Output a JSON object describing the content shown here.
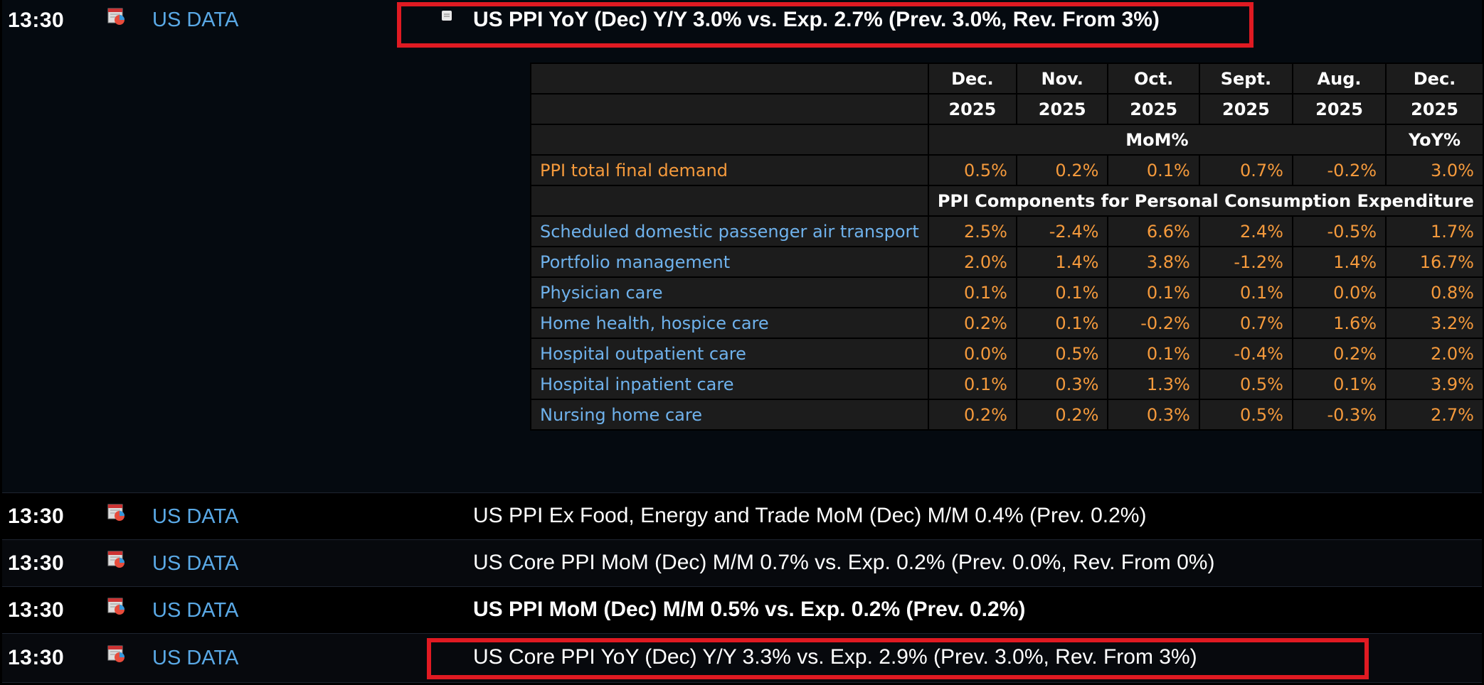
{
  "rows": [
    {
      "time": "13:30",
      "source": "US DATA",
      "headline": "US PPI YoY (Dec) Y/Y 3.0% vs. Exp. 2.7% (Prev. 3.0%, Rev. From 3%)"
    },
    {
      "time": "13:30",
      "source": "US DATA",
      "headline": "US PPI Ex Food, Energy and Trade MoM (Dec) M/M 0.4% (Prev. 0.2%)"
    },
    {
      "time": "13:30",
      "source": "US DATA",
      "headline": "US Core PPI MoM (Dec) M/M 0.7% vs. Exp. 0.2% (Prev. 0.0%, Rev. From 0%)"
    },
    {
      "time": "13:30",
      "source": "US DATA",
      "headline": "US PPI MoM (Dec) M/M 0.5% vs. Exp. 0.2% (Prev. 0.2%)"
    },
    {
      "time": "13:30",
      "source": "US DATA",
      "headline": "US Core PPI YoY (Dec) Y/Y 3.3% vs. Exp. 2.9% (Prev. 3.0%, Rev. From 3%)"
    }
  ],
  "table": {
    "months": [
      "Dec.",
      "Nov.",
      "Oct.",
      "Sept.",
      "Aug.",
      "Dec."
    ],
    "years": [
      "2025",
      "2025",
      "2025",
      "2025",
      "2025",
      "2025"
    ],
    "mom_label": "MoM%",
    "yoy_label": "YoY%",
    "total": {
      "label": "PPI total final demand",
      "values": [
        "0.5%",
        "0.2%",
        "0.1%",
        "0.7%",
        "-0.2%",
        "3.0%"
      ]
    },
    "section_title": "PPI Components for Personal Consumption Expenditure",
    "components": [
      {
        "label": "Scheduled domestic passenger air transport",
        "values": [
          "2.5%",
          "-2.4%",
          "6.6%",
          "2.4%",
          "-0.5%",
          "1.7%"
        ]
      },
      {
        "label": "Portfolio management",
        "values": [
          "2.0%",
          "1.4%",
          "3.8%",
          "-1.2%",
          "1.4%",
          "16.7%"
        ]
      },
      {
        "label": "Physician care",
        "values": [
          "0.1%",
          "0.1%",
          "0.1%",
          "0.1%",
          "0.0%",
          "0.8%"
        ]
      },
      {
        "label": "Home health, hospice care",
        "values": [
          "0.2%",
          "0.1%",
          "-0.2%",
          "0.7%",
          "1.6%",
          "3.2%"
        ]
      },
      {
        "label": "Hospital outpatient care",
        "values": [
          "0.0%",
          "0.5%",
          "0.1%",
          "-0.4%",
          "0.2%",
          "2.0%"
        ]
      },
      {
        "label": "Hospital inpatient care",
        "values": [
          "0.1%",
          "0.3%",
          "1.3%",
          "0.5%",
          "0.1%",
          "3.9%"
        ]
      },
      {
        "label": "Nursing home care",
        "values": [
          "0.2%",
          "0.2%",
          "0.3%",
          "0.5%",
          "-0.3%",
          "2.7%"
        ]
      }
    ]
  },
  "colors": {
    "highlight_box": "#e01a22",
    "source_link": "#5aa9e6",
    "value_orange": "#f59a3c",
    "label_blue": "#6fb2ec"
  }
}
